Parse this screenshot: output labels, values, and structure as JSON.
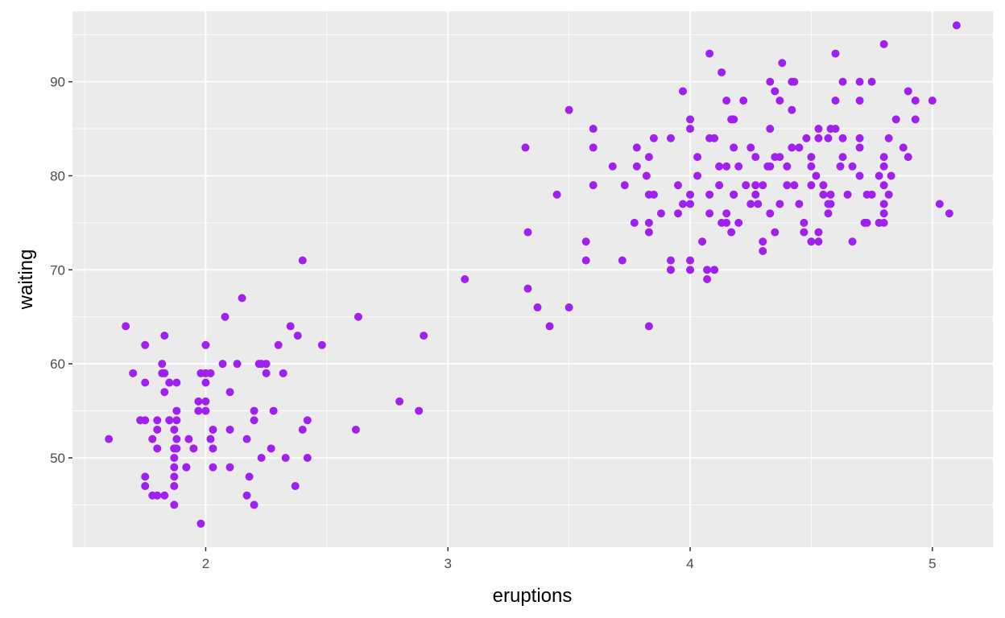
{
  "chart_data": {
    "type": "scatter",
    "title": "",
    "xlabel": "eruptions",
    "ylabel": "waiting",
    "xlim": [
      1.45,
      5.25
    ],
    "ylim": [
      40.5,
      97.5
    ],
    "x_ticks": [
      2,
      3,
      4,
      5
    ],
    "x_tick_labels": [
      "2",
      "3",
      "4",
      "5"
    ],
    "y_ticks": [
      50,
      60,
      70,
      80,
      90
    ],
    "y_tick_labels": [
      "50",
      "60",
      "70",
      "80",
      "90"
    ],
    "grid": true,
    "legend": "none",
    "colors": {
      "panel_background": "#ebebeb",
      "grid_major": "#ffffff",
      "point": "#a020f0",
      "tick_text": "#4d4d4d",
      "axis_title": "#000000"
    },
    "series": [
      {
        "x": [
          1.6,
          1.67,
          1.7,
          1.73,
          1.73,
          1.75,
          1.75,
          1.75,
          1.75,
          1.75,
          1.78,
          1.78,
          1.8,
          1.8,
          1.8,
          1.8,
          1.82,
          1.82,
          1.83,
          1.83,
          1.83,
          1.83,
          1.85,
          1.85,
          1.85,
          1.85,
          1.87,
          1.87,
          1.87,
          1.87,
          1.87,
          1.87,
          1.87,
          1.87,
          1.87,
          1.88,
          1.88,
          1.88,
          1.88,
          1.88,
          1.92,
          1.92,
          1.93,
          1.95,
          1.97,
          1.97,
          1.98,
          1.98,
          2.0,
          2.0,
          2.0,
          2.0,
          2.0,
          2.02,
          2.02,
          2.03,
          2.03,
          2.03,
          2.07,
          2.08,
          2.1,
          2.1,
          2.1,
          2.13,
          2.15,
          2.17,
          2.17,
          2.18,
          2.2,
          2.2,
          2.2,
          2.22,
          2.23,
          2.23,
          2.25,
          2.25,
          2.27,
          2.28,
          2.3,
          2.32,
          2.33,
          2.35,
          2.37,
          2.38,
          2.4,
          2.4,
          2.42,
          2.42,
          2.48,
          2.62,
          2.63,
          2.8,
          2.88,
          2.9,
          3.07,
          3.32,
          3.33,
          3.33,
          3.37,
          3.42,
          3.45,
          3.5,
          3.5,
          3.57,
          3.57,
          3.6,
          3.6,
          3.6,
          3.68,
          3.72,
          3.73,
          3.77,
          3.78,
          3.78,
          3.82,
          3.83,
          3.83,
          3.83,
          3.83,
          3.83,
          3.85,
          3.85,
          3.88,
          3.92,
          3.92,
          3.92,
          3.95,
          3.95,
          3.97,
          3.97,
          4.0,
          4.0,
          4.0,
          4.0,
          4.0,
          4.0,
          4.03,
          4.03,
          4.05,
          4.07,
          4.07,
          4.08,
          4.08,
          4.08,
          4.08,
          4.1,
          4.1,
          4.12,
          4.12,
          4.13,
          4.13,
          4.15,
          4.15,
          4.15,
          4.15,
          4.17,
          4.17,
          4.18,
          4.18,
          4.18,
          4.18,
          4.2,
          4.2,
          4.22,
          4.23,
          4.25,
          4.25,
          4.27,
          4.27,
          4.27,
          4.28,
          4.3,
          4.3,
          4.3,
          4.32,
          4.33,
          4.33,
          4.33,
          4.33,
          4.35,
          4.35,
          4.35,
          4.37,
          4.37,
          4.37,
          4.38,
          4.4,
          4.4,
          4.42,
          4.42,
          4.42,
          4.43,
          4.43,
          4.45,
          4.45,
          4.47,
          4.47,
          4.48,
          4.5,
          4.5,
          4.5,
          4.5,
          4.52,
          4.53,
          4.53,
          4.53,
          4.53,
          4.55,
          4.55,
          4.57,
          4.57,
          4.57,
          4.58,
          4.58,
          4.58,
          4.6,
          4.6,
          4.6,
          4.62,
          4.63,
          4.63,
          4.63,
          4.65,
          4.67,
          4.67,
          4.7,
          4.7,
          4.7,
          4.7,
          4.7,
          4.72,
          4.73,
          4.73,
          4.75,
          4.75,
          4.78,
          4.78,
          4.8,
          4.8,
          4.8,
          4.8,
          4.8,
          4.8,
          4.8,
          4.82,
          4.82,
          4.83,
          4.85,
          4.88,
          4.9,
          4.9,
          4.93,
          4.93,
          5.0,
          5.03,
          5.07,
          5.1
        ],
        "y": [
          52,
          64,
          59,
          54,
          54,
          48,
          62,
          58,
          47,
          54,
          46,
          52,
          54,
          51,
          53,
          46,
          59,
          60,
          59,
          63,
          46,
          57,
          54,
          58,
          54,
          58,
          49,
          53,
          48,
          45,
          51,
          50,
          51,
          47,
          51,
          54,
          52,
          55,
          58,
          51,
          49,
          49,
          52,
          51,
          55,
          56,
          59,
          43,
          56,
          55,
          62,
          59,
          58,
          59,
          52,
          49,
          51,
          53,
          60,
          65,
          57,
          53,
          49,
          60,
          67,
          52,
          46,
          48,
          55,
          45,
          54,
          60,
          50,
          60,
          59,
          60,
          51,
          55,
          62,
          59,
          50,
          64,
          47,
          63,
          71,
          53,
          50,
          54,
          62,
          53,
          65,
          56,
          55,
          63,
          69,
          83,
          74,
          68,
          66,
          64,
          78,
          87,
          66,
          73,
          71,
          79,
          83,
          85,
          81,
          71,
          79,
          75,
          81,
          83,
          80,
          75,
          82,
          74,
          78,
          64,
          78,
          84,
          76,
          71,
          70,
          84,
          76,
          79,
          77,
          89,
          71,
          70,
          78,
          77,
          86,
          85,
          80,
          82,
          73,
          69,
          70,
          84,
          93,
          78,
          76,
          84,
          70,
          81,
          79,
          75,
          91,
          88,
          76,
          75,
          81,
          86,
          74,
          83,
          78,
          86,
          78,
          75,
          81,
          88,
          79,
          77,
          83,
          79,
          78,
          82,
          77,
          72,
          79,
          73,
          81,
          90,
          81,
          76,
          85,
          89,
          82,
          74,
          88,
          82,
          77,
          92,
          81,
          79,
          90,
          83,
          87,
          79,
          90,
          83,
          77,
          74,
          75,
          84,
          73,
          79,
          81,
          82,
          80,
          84,
          74,
          73,
          85,
          79,
          78,
          84,
          76,
          77,
          85,
          78,
          77,
          88,
          85,
          93,
          81,
          82,
          90,
          84,
          78,
          81,
          73,
          84,
          80,
          83,
          88,
          90,
          75,
          75,
          78,
          90,
          78,
          75,
          80,
          79,
          81,
          76,
          94,
          77,
          82,
          75,
          84,
          78,
          80,
          86,
          83,
          89,
          82,
          88,
          86,
          88,
          77,
          76,
          96
        ]
      }
    ]
  }
}
